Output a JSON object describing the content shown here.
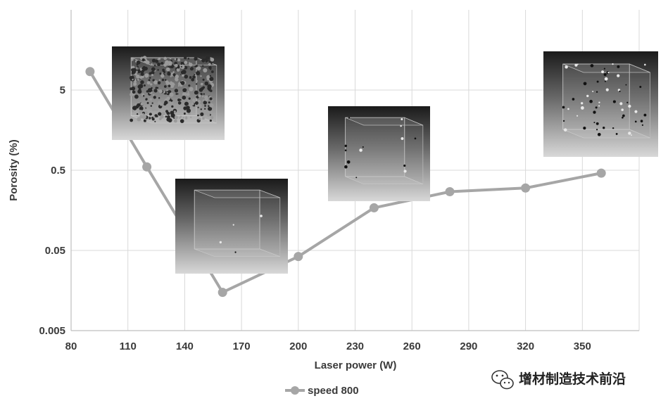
{
  "chart_data": {
    "type": "line",
    "x": [
      90,
      120,
      160,
      200,
      240,
      280,
      320,
      360
    ],
    "series": [
      {
        "name": "speed 800",
        "values": [
          8.5,
          0.55,
          0.015,
          0.042,
          0.17,
          0.27,
          0.3,
          0.46
        ]
      }
    ],
    "xlabel": "Laser power (W)",
    "ylabel": "Porosity (%)",
    "xlim": [
      80,
      380
    ],
    "ylim": [
      0.005,
      50
    ],
    "y_scale": "log",
    "xticks": [
      "80",
      "110",
      "140",
      "170",
      "200",
      "230",
      "260",
      "290",
      "320",
      "350"
    ],
    "yticks": [
      "0.005",
      "0.05",
      "0.5",
      "5"
    ],
    "grid": true,
    "legend_position": "bottom-center",
    "series_color": "#a6a6a6"
  },
  "watermark": {
    "text": "增材制造技术前沿"
  },
  "insets": [
    {
      "name": "ct-inset-high-porosity",
      "pores": "dense"
    },
    {
      "name": "ct-inset-low-porosity",
      "pores": "few"
    },
    {
      "name": "ct-inset-medium-porosity",
      "pores": "some"
    },
    {
      "name": "ct-inset-scattered-porosity",
      "pores": "many"
    }
  ]
}
